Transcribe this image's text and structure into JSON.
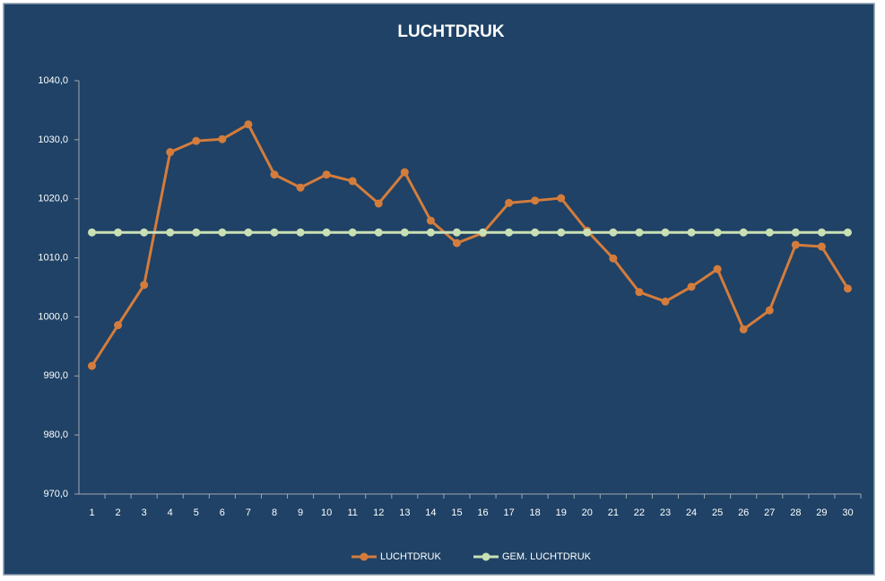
{
  "chart_data": {
    "type": "line",
    "title": "LUCHTDRUK",
    "categories": [
      "1",
      "2",
      "3",
      "4",
      "5",
      "6",
      "7",
      "8",
      "9",
      "10",
      "11",
      "12",
      "13",
      "14",
      "15",
      "16",
      "17",
      "18",
      "19",
      "20",
      "21",
      "22",
      "23",
      "24",
      "25",
      "26",
      "27",
      "28",
      "29",
      "30"
    ],
    "series": [
      {
        "name": "LUCHTDRUK",
        "color": "#d47c3c",
        "values": [
          991.7,
          998.6,
          1005.4,
          1027.9,
          1029.8,
          1030.1,
          1032.6,
          1024.1,
          1021.9,
          1024.1,
          1023.0,
          1019.2,
          1024.5,
          1016.3,
          1012.5,
          1014.2,
          1019.3,
          1019.7,
          1020.1,
          1014.6,
          1009.9,
          1004.2,
          1002.6,
          1005.1,
          1008.1,
          997.9,
          1001.1,
          1012.2,
          1011.9,
          1004.8
        ]
      },
      {
        "name": "GEM. LUCHTDRUK",
        "color": "#c9e0b4",
        "values": [
          1014.3,
          1014.3,
          1014.3,
          1014.3,
          1014.3,
          1014.3,
          1014.3,
          1014.3,
          1014.3,
          1014.3,
          1014.3,
          1014.3,
          1014.3,
          1014.3,
          1014.3,
          1014.3,
          1014.3,
          1014.3,
          1014.3,
          1014.3,
          1014.3,
          1014.3,
          1014.3,
          1014.3,
          1014.3,
          1014.3,
          1014.3,
          1014.3,
          1014.3,
          1014.3
        ]
      }
    ],
    "ylim": [
      970,
      1040
    ],
    "yticks": [
      {
        "value": 970,
        "label": "970,0"
      },
      {
        "value": 980,
        "label": "980,0"
      },
      {
        "value": 990,
        "label": "990,0"
      },
      {
        "value": 1000,
        "label": "1000,0"
      },
      {
        "value": 1010,
        "label": "1010,0"
      },
      {
        "value": 1020,
        "label": "1020,0"
      },
      {
        "value": 1030,
        "label": "1030,0"
      },
      {
        "value": 1040,
        "label": "1040,0"
      }
    ],
    "grid": false,
    "legend": "bottom"
  }
}
